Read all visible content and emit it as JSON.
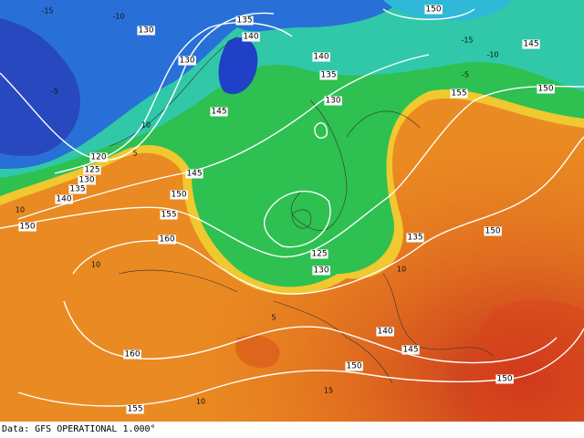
{
  "map": {
    "contour_labels": [
      130,
      135,
      140,
      130,
      140,
      135,
      130,
      145,
      150,
      145,
      150,
      155,
      120,
      125,
      130,
      135,
      140,
      145,
      150,
      155,
      160,
      150,
      135,
      150,
      125,
      130,
      140,
      145,
      150,
      150,
      160,
      155
    ],
    "isotherm_labels": [
      "-15",
      "-10",
      "-5",
      "-15",
      "-10",
      "-5",
      "10",
      "10",
      "5",
      "5",
      "10",
      "10",
      "10",
      "15"
    ]
  },
  "footer": {
    "data": "Data: GFS OPERATIONAL 1.000°"
  }
}
